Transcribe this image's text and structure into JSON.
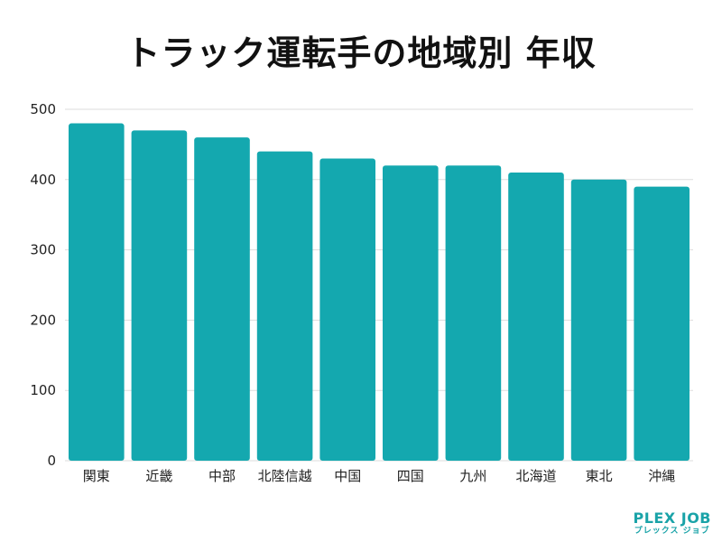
{
  "chart_data": {
    "type": "bar",
    "title": "トラック運転手の地域別 年収",
    "categories": [
      "関東",
      "近畿",
      "中部",
      "北陸信越",
      "中国",
      "四国",
      "九州",
      "北海道",
      "東北",
      "沖縄"
    ],
    "values": [
      480,
      470,
      460,
      440,
      430,
      420,
      420,
      410,
      400,
      390
    ],
    "ylim": [
      0,
      500
    ],
    "yticks": [
      0,
      100,
      200,
      300,
      400,
      500
    ],
    "xlabel": "",
    "ylabel": "",
    "grid": true,
    "bar_color": "#14a8af",
    "grid_color": "#dddddd"
  },
  "logo": {
    "main": "PLEX JOB",
    "sub": "プレックス ジョブ",
    "color": "#1aa3a8"
  }
}
